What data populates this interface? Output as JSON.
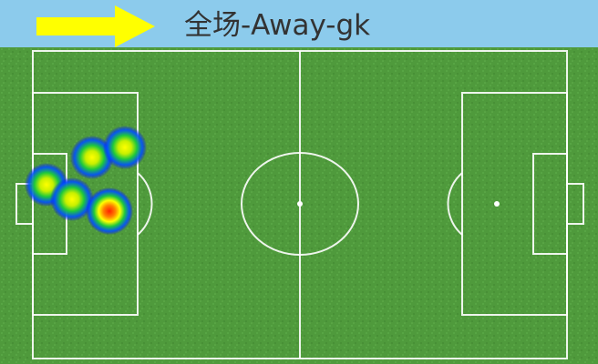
{
  "header": {
    "title": "全场-Away-gk",
    "background_color": "#8ccbec",
    "direction_arrow": {
      "icon": "right-arrow-icon",
      "color": "#ffff00"
    }
  },
  "pitch": {
    "grass_color": "#4f9a3c",
    "line_color": "#ffffff"
  },
  "heatmap": {
    "spots": [
      {
        "intensity": "medium"
      },
      {
        "intensity": "medium"
      },
      {
        "intensity": "medium"
      },
      {
        "intensity": "medium"
      },
      {
        "intensity": "high"
      }
    ]
  }
}
